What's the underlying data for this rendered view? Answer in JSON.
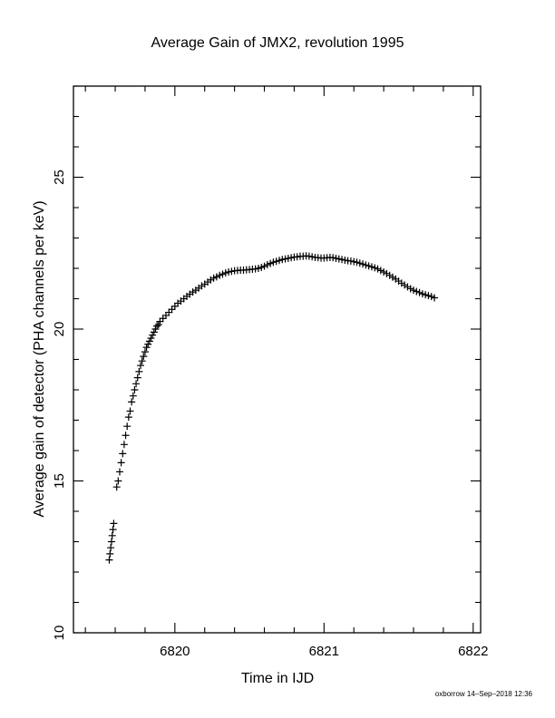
{
  "chart_data": {
    "type": "scatter",
    "title": "Average Gain of JMX2, revolution 1995",
    "xlabel": "Time in IJD",
    "ylabel": "Average gain of detector (PHA channels per keV)",
    "footer": "oxborrow 14–Sep–2018 12:36",
    "xlim": [
      6819.32,
      6822.05
    ],
    "ylim": [
      10,
      28
    ],
    "x_major_ticks": [
      6820,
      6821,
      6822
    ],
    "x_tick_labels": [
      "6820",
      "6821",
      "6822"
    ],
    "y_major_ticks": [
      15,
      20,
      25
    ],
    "y_tick_labels": [
      "15",
      "20",
      "25"
    ],
    "y_end_label": "10",
    "grid": false,
    "marker": "plus",
    "marker_color": "#000000",
    "points": [
      [
        6819.56,
        12.4
      ],
      [
        6819.565,
        12.6
      ],
      [
        6819.57,
        12.8
      ],
      [
        6819.575,
        13.0
      ],
      [
        6819.58,
        13.2
      ],
      [
        6819.585,
        13.4
      ],
      [
        6819.59,
        13.6
      ],
      [
        6819.61,
        14.8
      ],
      [
        6819.62,
        15.0
      ],
      [
        6819.63,
        15.3
      ],
      [
        6819.64,
        15.6
      ],
      [
        6819.65,
        15.9
      ],
      [
        6819.66,
        16.2
      ],
      [
        6819.67,
        16.5
      ],
      [
        6819.68,
        16.8
      ],
      [
        6819.69,
        17.1
      ],
      [
        6819.7,
        17.3
      ],
      [
        6819.71,
        17.6
      ],
      [
        6819.72,
        17.8
      ],
      [
        6819.73,
        18.0
      ],
      [
        6819.74,
        18.2
      ],
      [
        6819.75,
        18.4
      ],
      [
        6819.76,
        18.6
      ],
      [
        6819.77,
        18.8
      ],
      [
        6819.78,
        18.95
      ],
      [
        6819.79,
        19.1
      ],
      [
        6819.8,
        19.25
      ],
      [
        6819.81,
        19.4
      ],
      [
        6819.82,
        19.5
      ],
      [
        6819.83,
        19.6
      ],
      [
        6819.84,
        19.7
      ],
      [
        6819.85,
        19.8
      ],
      [
        6819.86,
        19.9
      ],
      [
        6819.87,
        20.0
      ],
      [
        6819.88,
        20.1
      ],
      [
        6819.89,
        20.15
      ],
      [
        6819.9,
        20.25
      ],
      [
        6819.92,
        20.35
      ],
      [
        6819.94,
        20.45
      ],
      [
        6819.96,
        20.55
      ],
      [
        6819.98,
        20.65
      ],
      [
        6820.0,
        20.75
      ],
      [
        6820.02,
        20.85
      ],
      [
        6820.04,
        20.92
      ],
      [
        6820.06,
        21.0
      ],
      [
        6820.08,
        21.08
      ],
      [
        6820.1,
        21.15
      ],
      [
        6820.12,
        21.22
      ],
      [
        6820.14,
        21.28
      ],
      [
        6820.16,
        21.35
      ],
      [
        6820.18,
        21.42
      ],
      [
        6820.2,
        21.48
      ],
      [
        6820.22,
        21.55
      ],
      [
        6820.24,
        21.62
      ],
      [
        6820.26,
        21.68
      ],
      [
        6820.28,
        21.72
      ],
      [
        6820.3,
        21.77
      ],
      [
        6820.32,
        21.81
      ],
      [
        6820.34,
        21.85
      ],
      [
        6820.36,
        21.88
      ],
      [
        6820.38,
        21.9
      ],
      [
        6820.4,
        21.92
      ],
      [
        6820.42,
        21.93
      ],
      [
        6820.44,
        21.94
      ],
      [
        6820.46,
        21.94
      ],
      [
        6820.48,
        21.95
      ],
      [
        6820.5,
        21.96
      ],
      [
        6820.52,
        21.97
      ],
      [
        6820.54,
        21.98
      ],
      [
        6820.56,
        22.0
      ],
      [
        6820.58,
        22.03
      ],
      [
        6820.6,
        22.07
      ],
      [
        6820.62,
        22.12
      ],
      [
        6820.64,
        22.16
      ],
      [
        6820.66,
        22.2
      ],
      [
        6820.68,
        22.23
      ],
      [
        6820.7,
        22.26
      ],
      [
        6820.72,
        22.29
      ],
      [
        6820.74,
        22.31
      ],
      [
        6820.76,
        22.33
      ],
      [
        6820.78,
        22.35
      ],
      [
        6820.8,
        22.37
      ],
      [
        6820.82,
        22.38
      ],
      [
        6820.84,
        22.4
      ],
      [
        6820.86,
        22.4
      ],
      [
        6820.88,
        22.41
      ],
      [
        6820.9,
        22.4
      ],
      [
        6820.92,
        22.38
      ],
      [
        6820.94,
        22.36
      ],
      [
        6820.96,
        22.35
      ],
      [
        6820.98,
        22.34
      ],
      [
        6821.0,
        22.34
      ],
      [
        6821.02,
        22.35
      ],
      [
        6821.04,
        22.36
      ],
      [
        6821.06,
        22.35
      ],
      [
        6821.08,
        22.33
      ],
      [
        6821.1,
        22.31
      ],
      [
        6821.12,
        22.29
      ],
      [
        6821.14,
        22.27
      ],
      [
        6821.16,
        22.25
      ],
      [
        6821.18,
        22.24
      ],
      [
        6821.2,
        22.22
      ],
      [
        6821.22,
        22.2
      ],
      [
        6821.24,
        22.17
      ],
      [
        6821.26,
        22.14
      ],
      [
        6821.28,
        22.11
      ],
      [
        6821.3,
        22.08
      ],
      [
        6821.32,
        22.05
      ],
      [
        6821.34,
        22.02
      ],
      [
        6821.36,
        21.98
      ],
      [
        6821.38,
        21.93
      ],
      [
        6821.4,
        21.88
      ],
      [
        6821.42,
        21.83
      ],
      [
        6821.44,
        21.77
      ],
      [
        6821.46,
        21.71
      ],
      [
        6821.48,
        21.65
      ],
      [
        6821.5,
        21.58
      ],
      [
        6821.52,
        21.51
      ],
      [
        6821.54,
        21.45
      ],
      [
        6821.56,
        21.39
      ],
      [
        6821.58,
        21.33
      ],
      [
        6821.6,
        21.28
      ],
      [
        6821.62,
        21.24
      ],
      [
        6821.64,
        21.2
      ],
      [
        6821.66,
        21.16
      ],
      [
        6821.68,
        21.13
      ],
      [
        6821.7,
        21.1
      ],
      [
        6821.72,
        21.07
      ],
      [
        6821.74,
        21.03
      ]
    ]
  }
}
